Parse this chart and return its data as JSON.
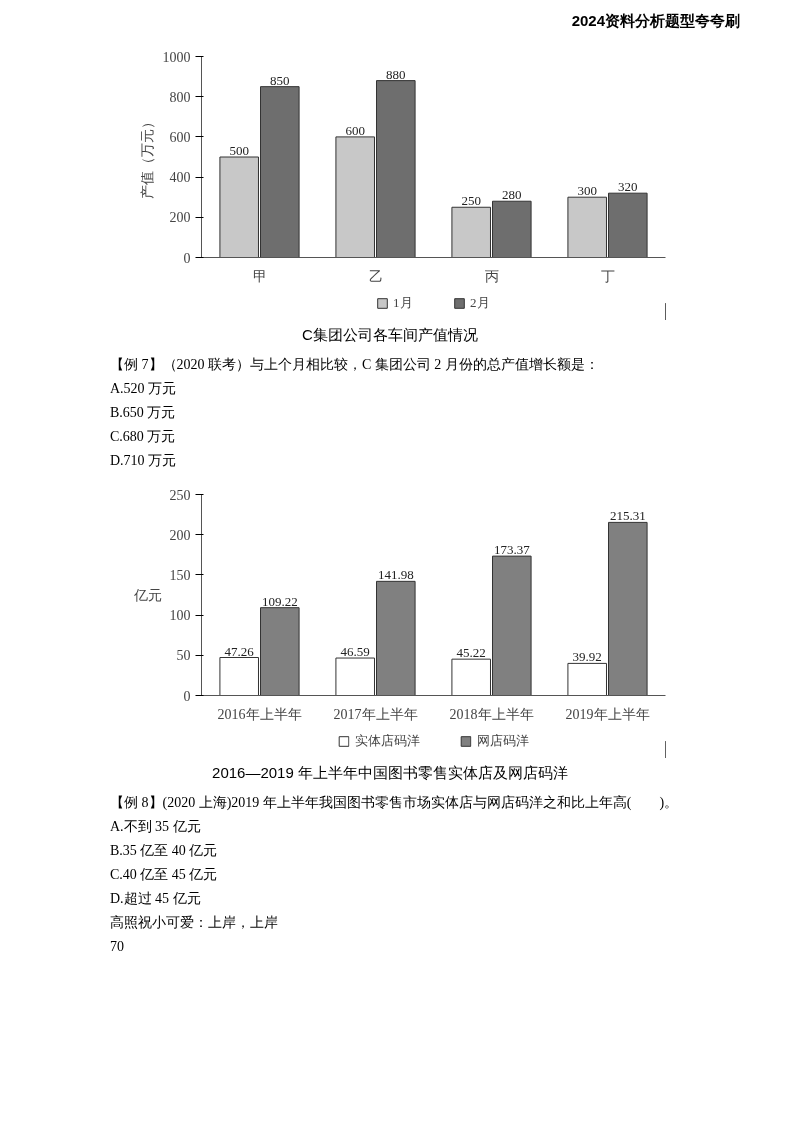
{
  "chart_data": [
    {
      "type": "bar",
      "subtitle": "2024资料分析题型夸夸刷",
      "title": "C集团公司各车间产值情况",
      "ylabel": "产值（万元）",
      "categories": [
        "甲",
        "乙",
        "丙",
        "丁"
      ],
      "series": [
        {
          "name": "1月",
          "color": "#c8c8c8",
          "values": [
            500,
            600,
            250,
            300
          ]
        },
        {
          "name": "2月",
          "color": "#6e6e6e",
          "values": [
            850,
            880,
            280,
            320
          ]
        }
      ],
      "ylim": [
        0,
        1000
      ],
      "yticks": [
        0,
        200,
        400,
        600,
        800,
        1000
      ],
      "grid": false,
      "legend": "bottom",
      "data_labels": true,
      "annotations": [
        "【例 7】（2020 联考）与上个月相比较，C 集团公司 2 月份的总产值增长额是：",
        "A.520 万元",
        "B.650 万元",
        "C.680 万元",
        "D.710 万元"
      ]
    },
    {
      "type": "bar",
      "title": "2016—2019 年上半年中国图书零售实体店及网店码洋",
      "ylabel": "亿元",
      "categories": [
        "2016年上半年",
        "2017年上半年",
        "2018年上半年",
        "2019年上半年"
      ],
      "series": [
        {
          "name": "实体店码洋",
          "color": "#ffffff",
          "values": [
            47.26,
            46.59,
            45.22,
            39.92
          ]
        },
        {
          "name": "网店码洋",
          "color": "#808080",
          "values": [
            109.22,
            141.98,
            173.37,
            215.31
          ]
        }
      ],
      "ylim": [
        0,
        250
      ],
      "yticks": [
        0,
        50,
        100,
        150,
        200,
        250
      ],
      "grid": false,
      "legend": "bottom",
      "data_labels": true,
      "annotations": [
        "【例 8】(2020 上海)2019 年上半年我国图书零售市场实体店与网店码洋之和比上年高(　　)。",
        "A.不到 35 亿元",
        "B.35 亿至 40 亿元",
        "C.40 亿至 45 亿元",
        "D.超过 45 亿元",
        "高照祝小可爱：上岸，上岸",
        "70"
      ]
    }
  ]
}
